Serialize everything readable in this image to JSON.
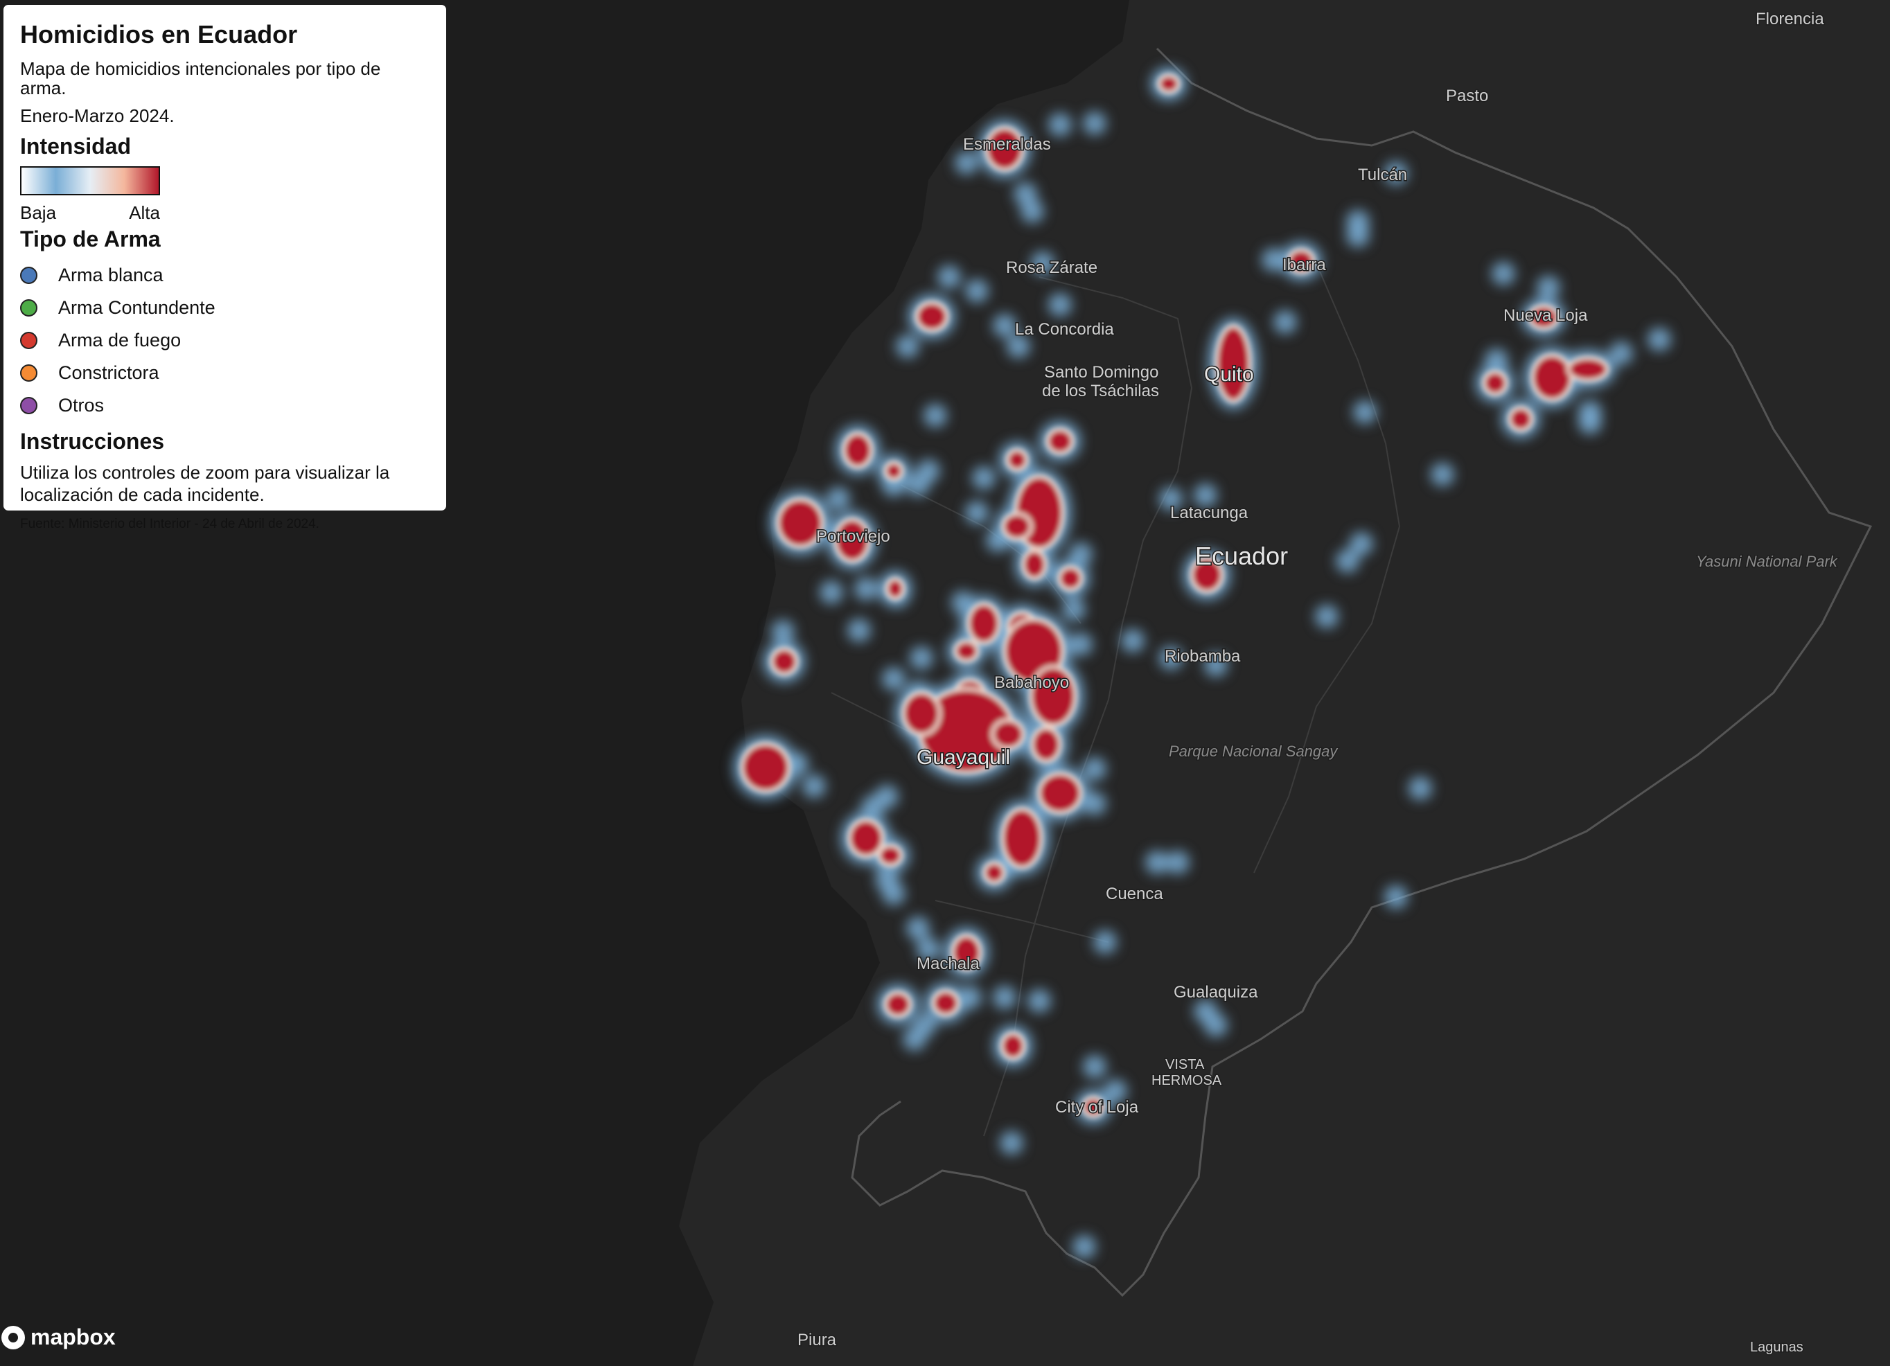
{
  "legend": {
    "title": "Homicidios en Ecuador",
    "description_line1": "Mapa de homicidios intencionales por tipo de arma.",
    "description_line2": "Enero-Marzo 2024.",
    "intensity_heading": "Intensidad",
    "intensity_low": "Baja",
    "intensity_high": "Alta",
    "weapon_heading": "Tipo de Arma",
    "weapons": [
      {
        "label": "Arma blanca",
        "color": "#4a79b8"
      },
      {
        "label": "Arma Contundente",
        "color": "#4dac47"
      },
      {
        "label": "Arma de fuego",
        "color": "#d43a2f"
      },
      {
        "label": "Constrictora",
        "color": "#f58b34"
      },
      {
        "label": "Otros",
        "color": "#8e4ea6"
      }
    ],
    "instructions_heading": "Instrucciones",
    "instructions_text": "Utiliza los controles de zoom para visualizar la localización de cada incidente.",
    "source": "Fuente: Ministerio del Interior - 24 de Abril de 2024."
  },
  "map_labels": {
    "florencia": "Florencia",
    "pasto": "Pasto",
    "tulcan": "Tulcán",
    "esmeraldas": "Esmeraldas",
    "ibarra": "Ibarra",
    "rosa_zarate": "Rosa Zárate",
    "nueva_loja": "Nueva Loja",
    "la_concordia": "La Concordia",
    "santo_domingo_1": "Santo Domingo",
    "santo_domingo_2": "de los Tsáchilas",
    "quito": "Quito",
    "portoviejo": "Portoviejo",
    "latacunga": "Latacunga",
    "ecuador": "Ecuador",
    "yasuni": "Yasuni National Park",
    "riobamba": "Riobamba",
    "babahoyo": "Babahoyo",
    "guayaquil": "Guayaquil",
    "sangay": "Parque Nacional Sangay",
    "cuenca": "Cuenca",
    "machala": "Machala",
    "gualaquiza": "Gualaquiza",
    "vista_1": "VISTA",
    "vista_2": "HERMOSA",
    "loja": "City of Loja",
    "piura": "Piura",
    "lagunas": "Lagunas"
  },
  "attribution": "mapbox",
  "colors": {
    "hot": "#b2182b",
    "cold": "#7aaed6",
    "background": "#1d1d1d"
  }
}
